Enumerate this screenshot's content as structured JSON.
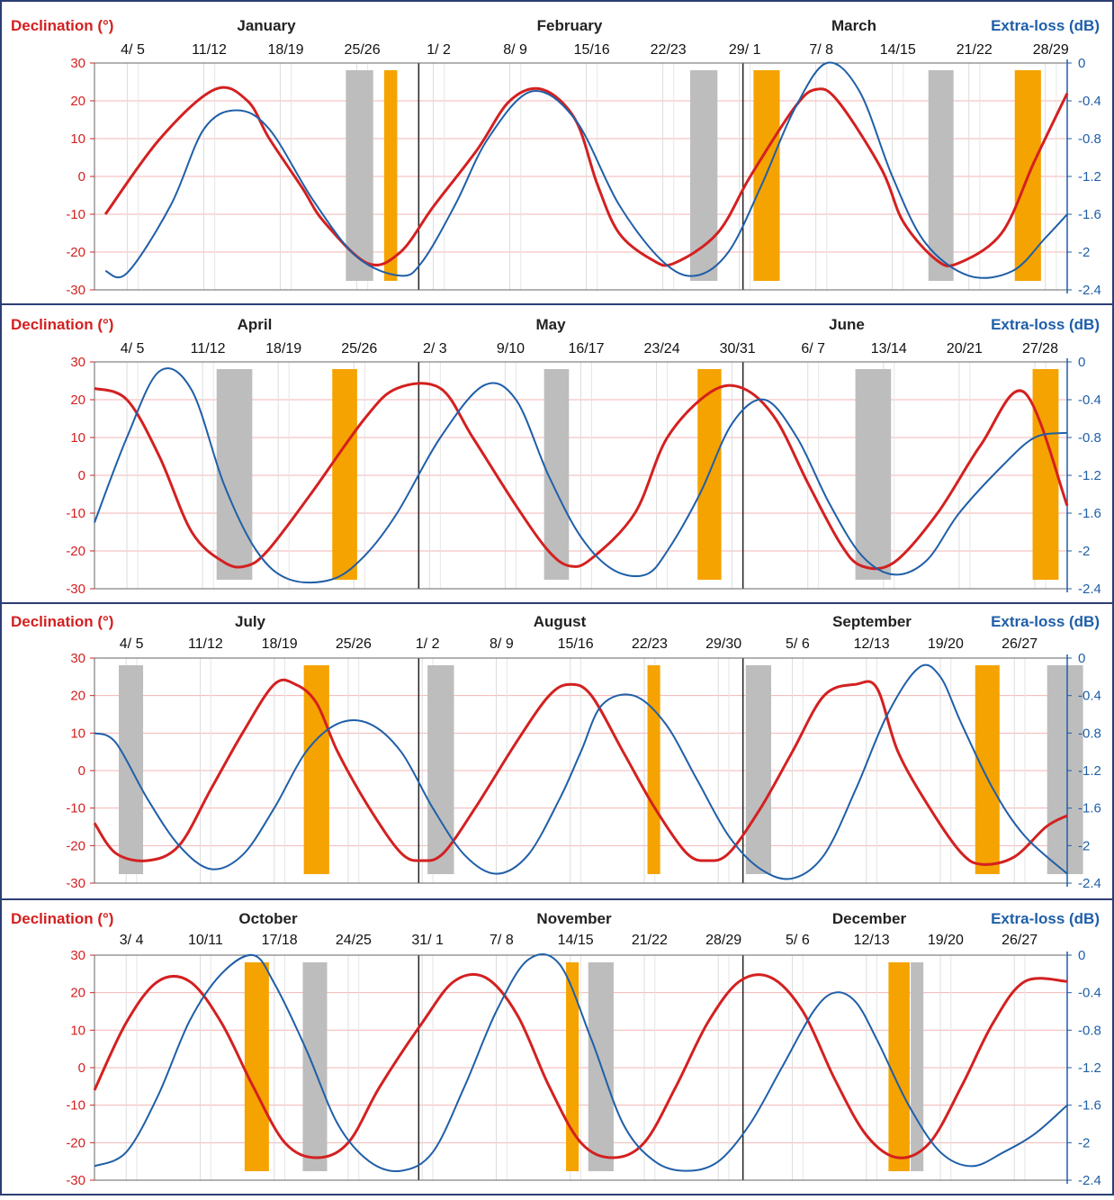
{
  "colors": {
    "declination": "#d42020",
    "extra_loss": "#1f5fa8",
    "orange_band": "#f5a300",
    "grey_band": "#bdbdbd",
    "grid": "#f4b4b4",
    "tick": "#b0b0b0",
    "month_divider": "#222222",
    "frame": "#2c3e73"
  },
  "axes": {
    "left_label": "Declination (°)",
    "right_label": "Extra-loss (dB)",
    "left_ticks": [
      "30",
      "20",
      "10",
      "0",
      "-10",
      "-20",
      "-30"
    ],
    "right_ticks": [
      "0",
      "-0.4",
      "-0.8",
      "-1.2",
      "-1.6",
      "-2",
      "-2.4"
    ]
  },
  "chart_data": [
    {
      "type": "line",
      "months": [
        "January",
        "February",
        "March"
      ],
      "date_labels": [
        "4/ 5",
        "11/12",
        "18/19",
        "25/26",
        "1/ 2",
        "8/ 9",
        "15/16",
        "22/23",
        "29/ 1",
        "7/ 8",
        "14/15",
        "21/22",
        "28/29"
      ],
      "days": 89,
      "x_start": "Jan 1",
      "x_end": "Mar 31",
      "ylim": [
        -30,
        30
      ],
      "y2lim": [
        -2.4,
        0
      ],
      "series": [
        {
          "name": "Declination (°)",
          "axis": "left",
          "x": [
            1,
            6,
            11,
            14,
            16,
            19,
            21,
            25,
            28,
            31,
            35,
            38,
            41,
            44,
            46,
            48,
            51,
            53,
            57,
            60,
            64,
            66,
            68,
            72,
            74,
            77,
            79,
            83,
            86,
            89
          ],
          "y": [
            -10,
            10,
            23,
            20,
            10,
            -3,
            -12,
            -23,
            -20,
            -8,
            7,
            20,
            23,
            15,
            -2,
            -15,
            -22,
            -23,
            -15,
            0,
            18,
            23,
            20,
            2,
            -12,
            -22,
            -23,
            -15,
            4,
            22
          ]
        },
        {
          "name": "Extra-loss (dB)",
          "axis": "right",
          "x": [
            1,
            3,
            7,
            10,
            13,
            16,
            20,
            24,
            28,
            30,
            33,
            36,
            40,
            44,
            48,
            52,
            55,
            58,
            61,
            64,
            67,
            70,
            73,
            76,
            80,
            84,
            87,
            89
          ],
          "y": [
            -2.2,
            -2.22,
            -1.5,
            -0.7,
            -0.5,
            -0.7,
            -1.45,
            -2.05,
            -2.25,
            -2.1,
            -1.5,
            -0.8,
            -0.3,
            -0.6,
            -1.5,
            -2.1,
            -2.25,
            -2,
            -1.3,
            -0.5,
            0,
            -0.3,
            -1.2,
            -1.9,
            -2.25,
            -2.2,
            -1.85,
            -1.6
          ]
        }
      ],
      "bands": [
        {
          "color": "grey",
          "from": 23.0,
          "to": 25.5
        },
        {
          "color": "orange",
          "from": 26.5,
          "to": 27.7
        },
        {
          "color": "grey",
          "from": 54.5,
          "to": 57.0
        },
        {
          "color": "orange",
          "from": 60.3,
          "to": 62.7
        },
        {
          "color": "grey",
          "from": 76.3,
          "to": 78.6
        },
        {
          "color": "orange",
          "from": 84.2,
          "to": 86.6
        }
      ]
    },
    {
      "type": "line",
      "months": [
        "April",
        "May",
        "June"
      ],
      "date_labels": [
        "4/ 5",
        "11/12",
        "18/19",
        "25/26",
        "2/ 3",
        "9/10",
        "16/17",
        "23/24",
        "30/31",
        "6/ 7",
        "13/14",
        "20/21",
        "27/28"
      ],
      "days": 90,
      "x_start": "Apr 1",
      "x_end": "Jun 30",
      "ylim": [
        -30,
        30
      ],
      "y2lim": [
        -2.4,
        0
      ],
      "series": [
        {
          "name": "Declination (°)",
          "axis": "left",
          "x": [
            0,
            3,
            6,
            9,
            12,
            14,
            16,
            20,
            25,
            28,
            32,
            35,
            39,
            42,
            44,
            46,
            50,
            53,
            57,
            60,
            63,
            66,
            69,
            71,
            74,
            78,
            82,
            86,
            90
          ],
          "y": [
            23,
            20,
            5,
            -15,
            -23,
            -24,
            -20,
            -5,
            15,
            23,
            23,
            10,
            -8,
            -20,
            -24,
            -22,
            -10,
            10,
            22,
            23,
            15,
            -2,
            -18,
            -24,
            -23,
            -10,
            8,
            22,
            -8
          ]
        },
        {
          "name": "Extra-loss (dB)",
          "axis": "right",
          "x": [
            0,
            3,
            6,
            9,
            12,
            15,
            18,
            22,
            25,
            28,
            32,
            36,
            39,
            42,
            45,
            48,
            51,
            53,
            56,
            59,
            62,
            65,
            68,
            71,
            74,
            77,
            80,
            84,
            87,
            90
          ],
          "y": [
            -1.7,
            -0.8,
            -0.1,
            -0.3,
            -1.3,
            -2,
            -2.3,
            -2.3,
            -2.05,
            -1.6,
            -0.8,
            -0.25,
            -0.4,
            -1.2,
            -1.85,
            -2.2,
            -2.25,
            -2,
            -1.4,
            -0.65,
            -0.4,
            -0.8,
            -1.5,
            -2.05,
            -2.25,
            -2.1,
            -1.6,
            -1.1,
            -0.8,
            -0.75
          ]
        }
      ],
      "bands": [
        {
          "color": "grey",
          "from": 11.3,
          "to": 14.6
        },
        {
          "color": "orange",
          "from": 22.0,
          "to": 24.3
        },
        {
          "color": "grey",
          "from": 41.6,
          "to": 43.9
        },
        {
          "color": "orange",
          "from": 55.8,
          "to": 58.0
        },
        {
          "color": "grey",
          "from": 70.4,
          "to": 73.7
        },
        {
          "color": "orange",
          "from": 86.8,
          "to": 89.2
        }
      ]
    },
    {
      "type": "line",
      "months": [
        "July",
        "August",
        "September"
      ],
      "date_labels": [
        "4/ 5",
        "11/12",
        "18/19",
        "25/26",
        "1/ 2",
        "8/ 9",
        "15/16",
        "22/23",
        "29/30",
        "5/ 6",
        "12/13",
        "19/20",
        "26/27"
      ],
      "days": 92,
      "x_start": "Jul 1",
      "x_end": "Sep 30",
      "ylim": [
        -30,
        30
      ],
      "y2lim": [
        -2.4,
        0
      ],
      "series": [
        {
          "name": "Declination (°)",
          "axis": "left",
          "x": [
            0,
            2,
            5,
            8,
            11,
            14,
            17,
            19,
            21,
            23,
            26,
            29,
            31,
            33,
            36,
            40,
            43,
            45,
            47,
            50,
            53,
            56,
            58,
            60,
            63,
            66,
            69,
            72,
            74,
            76,
            79,
            82,
            84,
            87,
            90,
            92
          ],
          "y": [
            -14,
            -22,
            -24,
            -20,
            -5,
            10,
            23,
            23,
            18,
            5,
            -10,
            -22,
            -24,
            -22,
            -10,
            8,
            20,
            23,
            20,
            5,
            -10,
            -22,
            -24,
            -22,
            -10,
            5,
            20,
            23,
            22,
            5,
            -10,
            -22,
            -25,
            -23,
            -15,
            -12
          ]
        },
        {
          "name": "Extra-loss (dB)",
          "axis": "right",
          "x": [
            0,
            2,
            5,
            8,
            11,
            14,
            17,
            20,
            23,
            26,
            29,
            32,
            35,
            38,
            41,
            44,
            46,
            48,
            51,
            54,
            57,
            60,
            63,
            66,
            69,
            72,
            75,
            78,
            80,
            82,
            85,
            88,
            92
          ],
          "y": [
            -0.8,
            -0.9,
            -1.5,
            -2,
            -2.25,
            -2.1,
            -1.6,
            -1.0,
            -0.7,
            -0.7,
            -1,
            -1.6,
            -2.1,
            -2.3,
            -2.1,
            -1.5,
            -1.0,
            -0.5,
            -0.4,
            -0.7,
            -1.3,
            -1.9,
            -2.25,
            -2.35,
            -2.1,
            -1.4,
            -0.6,
            -0.1,
            -0.2,
            -0.7,
            -1.4,
            -1.9,
            -2.3
          ]
        }
      ],
      "bands": [
        {
          "color": "grey",
          "from": 2.3,
          "to": 4.6
        },
        {
          "color": "orange",
          "from": 19.8,
          "to": 22.2
        },
        {
          "color": "grey",
          "from": 31.5,
          "to": 34.0
        },
        {
          "color": "orange",
          "from": 52.3,
          "to": 53.5
        },
        {
          "color": "grey",
          "from": 61.6,
          "to": 64.0
        },
        {
          "color": "orange",
          "from": 83.3,
          "to": 85.6
        },
        {
          "color": "grey",
          "from": 90.1,
          "to": 93.5
        }
      ]
    },
    {
      "type": "line",
      "months": [
        "October",
        "November",
        "December"
      ],
      "date_labels": [
        "3/ 4",
        "10/11",
        "17/18",
        "24/25",
        "31/ 1",
        "7/ 8",
        "14/15",
        "21/22",
        "28/29",
        "5/ 6",
        "12/13",
        "19/20",
        "26/27"
      ],
      "days": 92,
      "x_start": "Oct 1",
      "x_end": "Dec 31",
      "ylim": [
        -30,
        30
      ],
      "y2lim": [
        -2.4,
        0
      ],
      "series": [
        {
          "name": "Declination (°)",
          "axis": "left",
          "x": [
            0,
            3,
            6,
            9,
            12,
            15,
            18,
            21,
            24,
            27,
            31,
            34,
            37,
            40,
            43,
            46,
            49,
            52,
            55,
            58,
            61,
            64,
            67,
            70,
            73,
            76,
            79,
            82,
            85,
            88,
            92
          ],
          "y": [
            -6,
            12,
            23,
            23,
            12,
            -5,
            -20,
            -24,
            -20,
            -5,
            12,
            23,
            24,
            14,
            -5,
            -20,
            -24,
            -20,
            -5,
            12,
            23,
            24,
            15,
            -3,
            -18,
            -24,
            -20,
            -5,
            12,
            23,
            23
          ]
        },
        {
          "name": "Extra-loss (dB)",
          "axis": "right",
          "x": [
            0,
            3,
            6,
            9,
            12,
            15,
            17,
            20,
            23,
            26,
            29,
            32,
            35,
            38,
            41,
            44,
            47,
            50,
            53,
            56,
            59,
            62,
            65,
            68,
            70,
            72,
            74,
            77,
            80,
            83,
            86,
            89,
            92
          ],
          "y": [
            -2.25,
            -2.1,
            -1.5,
            -0.7,
            -0.2,
            0,
            -0.3,
            -1.0,
            -1.8,
            -2.2,
            -2.3,
            -2.1,
            -1.4,
            -0.6,
            -0.05,
            -0.1,
            -0.9,
            -1.8,
            -2.2,
            -2.3,
            -2.2,
            -1.8,
            -1.2,
            -0.6,
            -0.4,
            -0.5,
            -0.9,
            -1.6,
            -2.1,
            -2.25,
            -2.1,
            -1.9,
            -1.6
          ]
        }
      ],
      "bands": [
        {
          "color": "orange",
          "from": 14.2,
          "to": 16.5
        },
        {
          "color": "grey",
          "from": 19.7,
          "to": 22.0
        },
        {
          "color": "orange",
          "from": 44.6,
          "to": 45.8
        },
        {
          "color": "grey",
          "from": 46.7,
          "to": 49.1
        },
        {
          "color": "orange",
          "from": 75.1,
          "to": 77.1
        },
        {
          "color": "grey",
          "from": 77.2,
          "to": 78.4
        }
      ]
    }
  ]
}
